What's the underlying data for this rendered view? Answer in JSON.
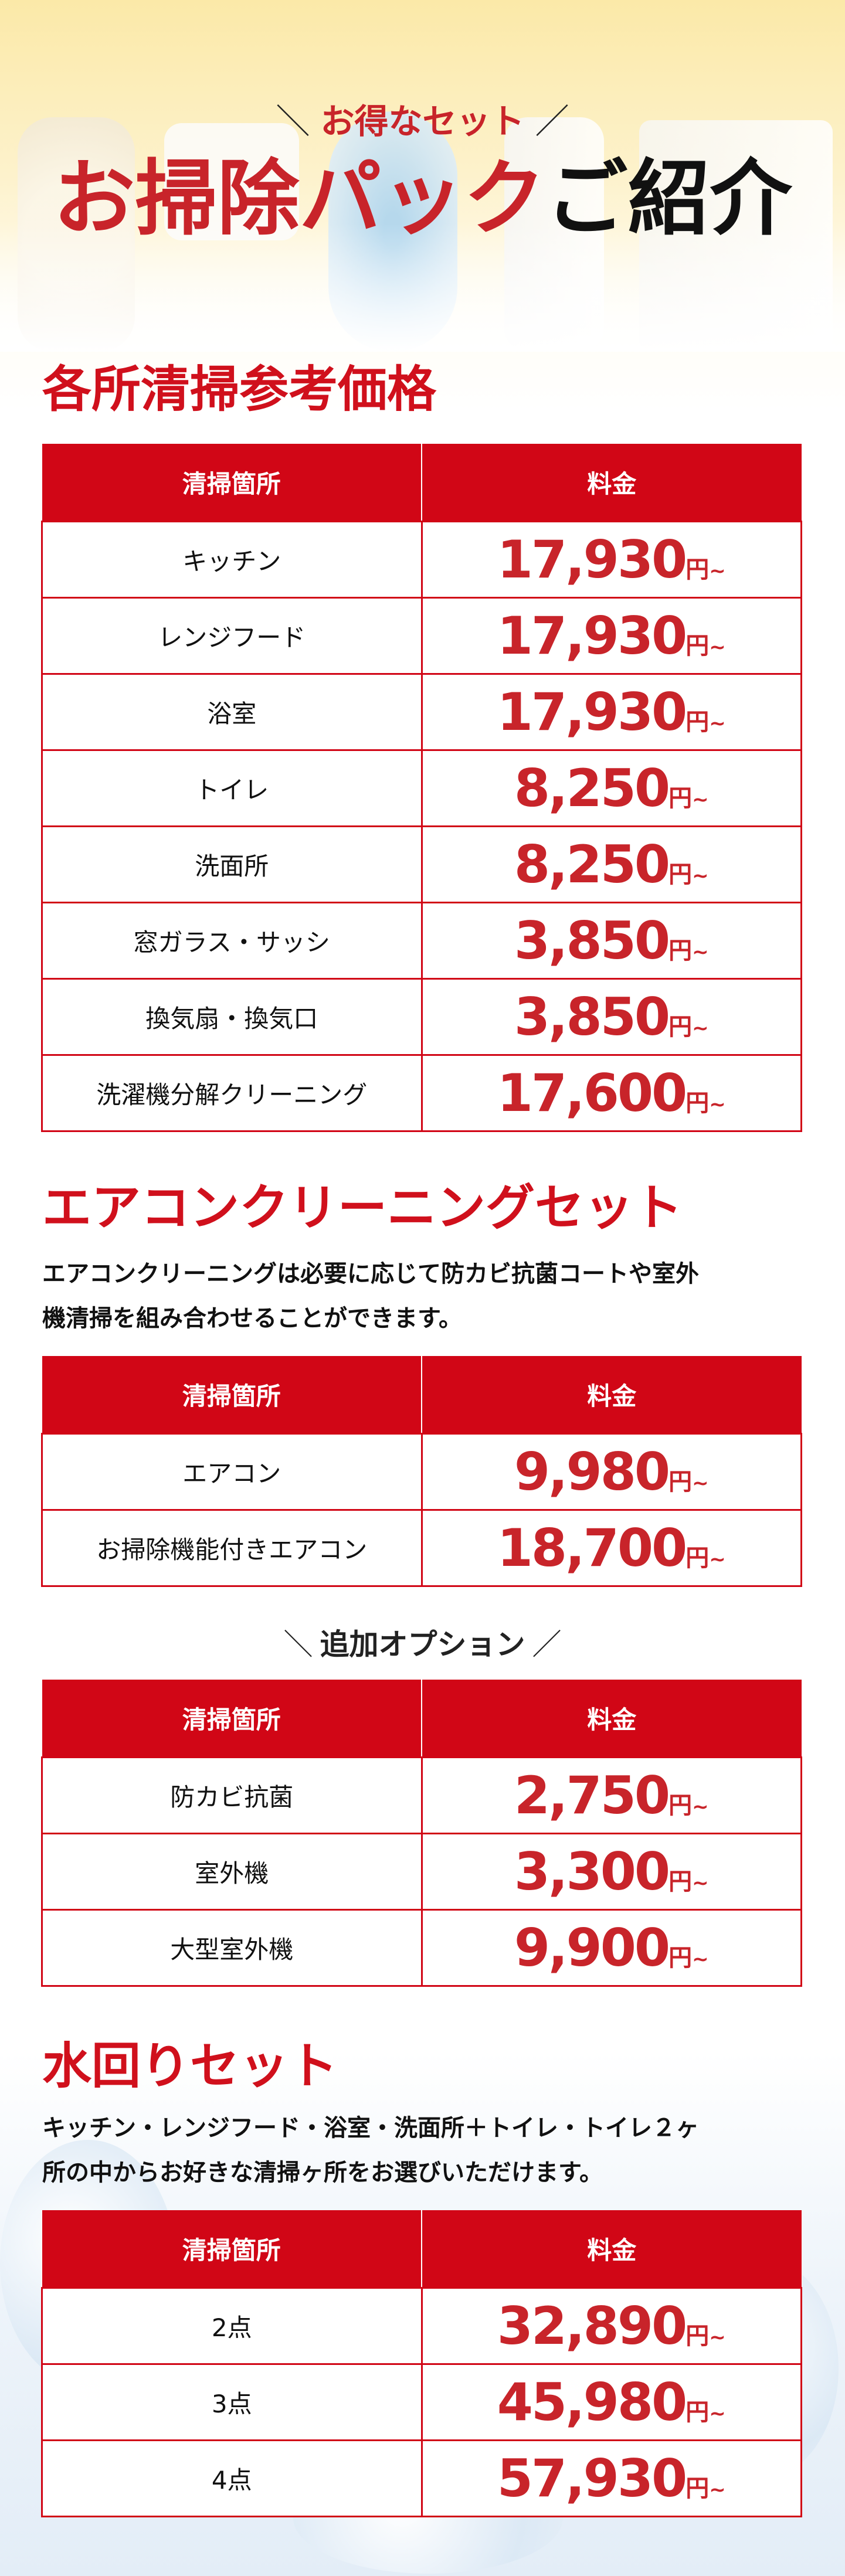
{
  "hero": {
    "subtitle": "お得なセット",
    "title_red": "お掃除パック",
    "title_black": "ご紹介",
    "slash_left": "＼",
    "slash_right": "／"
  },
  "colors": {
    "accent": "#d10616",
    "price": "#c8242a"
  },
  "column_headers": {
    "place": "清掃箇所",
    "fee": "料金"
  },
  "price_suffix": {
    "unit": "円",
    "tilde": "~"
  },
  "section1": {
    "title": "各所清掃参考価格",
    "rows": [
      {
        "place": "キッチン",
        "price": "17,930"
      },
      {
        "place": "レンジフード",
        "price": "17,930"
      },
      {
        "place": "浴室",
        "price": "17,930"
      },
      {
        "place": "トイレ",
        "price": "8,250"
      },
      {
        "place": "洗面所",
        "price": "8,250"
      },
      {
        "place": "窓ガラス・サッシ",
        "price": "3,850"
      },
      {
        "place": "換気扇・換気口",
        "price": "3,850"
      },
      {
        "place": "洗濯機分解クリーニング",
        "price": "17,600"
      }
    ]
  },
  "section2": {
    "title": "エアコンクリーニングセット",
    "description_line1": "エアコンクリーニングは必要に応じて防カビ抗菌コートや室外",
    "description_line2": "機清掃を組み合わせることができます。",
    "rows": [
      {
        "place": "エアコン",
        "price": "9,980"
      },
      {
        "place": "お掃除機能付きエアコン",
        "price": "18,700"
      }
    ],
    "option_title": "追加オプション",
    "option_rows": [
      {
        "place": "防カビ抗菌",
        "price": "2,750"
      },
      {
        "place": "室外機",
        "price": "3,300"
      },
      {
        "place": "大型室外機",
        "price": "9,900"
      }
    ]
  },
  "section3": {
    "title": "水回りセット",
    "description_line1": "キッチン・レンジフード・浴室・洗面所＋トイレ・トイレ２ヶ",
    "description_line2": "所の中からお好きな清掃ヶ所をお選びいただけます。",
    "rows": [
      {
        "place": "2点",
        "price": "32,890"
      },
      {
        "place": "3点",
        "price": "45,980"
      },
      {
        "place": "4点",
        "price": "57,930"
      }
    ]
  }
}
